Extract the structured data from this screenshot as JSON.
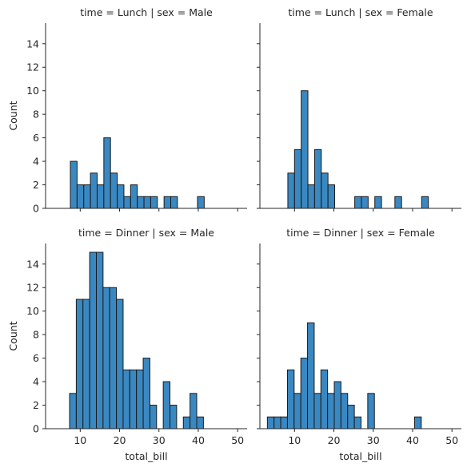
{
  "chart_data": {
    "type": "bar",
    "xlabel": "total_bill",
    "ylabel": "Count",
    "xlim": [
      1.2,
      52.4
    ],
    "ylim": [
      0,
      15.75
    ],
    "x_ticks": [
      10,
      20,
      30,
      40,
      50
    ],
    "y_ticks": [
      0,
      2,
      4,
      6,
      8,
      10,
      12,
      14
    ],
    "bar_color": "#3a88c2",
    "edge_color": "#1a1a1a",
    "panels": [
      {
        "title": "time = Lunch | sex = Male",
        "bin_edges": [
          7.5,
          9.2,
          10.9,
          12.6,
          14.3,
          16.0,
          17.7,
          19.4,
          21.1,
          22.8,
          24.5,
          26.2,
          27.9,
          29.6,
          31.3,
          33.0,
          34.7,
          36.4,
          38.1,
          39.8,
          41.5
        ],
        "counts": [
          4,
          2,
          2,
          3,
          2,
          6,
          3,
          2,
          1,
          2,
          1,
          1,
          1,
          0,
          1,
          1,
          0,
          0,
          0,
          1
        ]
      },
      {
        "title": "time = Lunch | sex = Female",
        "bin_edges": [
          8.3,
          10.0,
          11.7,
          13.4,
          15.1,
          16.8,
          18.5,
          20.2,
          21.9,
          23.6,
          25.3,
          27.0,
          28.7,
          30.4,
          32.1,
          33.8,
          35.5,
          37.2,
          38.9,
          40.6,
          42.3,
          44.0
        ],
        "counts": [
          3,
          5,
          10,
          2,
          5,
          3,
          2,
          0,
          0,
          0,
          1,
          1,
          0,
          1,
          0,
          0,
          1,
          0,
          0,
          0,
          1
        ]
      },
      {
        "title": "time = Dinner | sex = Male",
        "bin_edges": [
          7.3,
          9.0,
          10.7,
          12.4,
          14.1,
          15.8,
          17.5,
          19.2,
          20.9,
          22.6,
          24.3,
          26.0,
          27.7,
          29.4,
          31.1,
          32.8,
          34.5,
          36.2,
          37.9,
          39.6,
          41.3,
          43.0,
          44.7,
          46.4,
          48.1,
          49.8,
          51.5
        ],
        "counts": [
          3,
          11,
          11,
          15,
          15,
          12,
          12,
          11,
          5,
          5,
          5,
          6,
          2,
          0,
          4,
          2,
          0,
          1,
          3,
          1,
          0,
          0,
          0,
          0,
          0,
          0
        ]
      },
      {
        "title": "time = Dinner | sex = Female",
        "bin_edges": [
          3.1,
          4.8,
          6.5,
          8.2,
          9.9,
          11.6,
          13.3,
          15.0,
          16.7,
          18.4,
          20.1,
          21.8,
          23.5,
          25.2,
          26.9,
          28.6,
          30.3,
          32.0,
          33.7,
          35.4,
          37.1,
          38.8,
          40.5,
          42.2,
          43.9
        ],
        "counts": [
          1,
          1,
          1,
          5,
          3,
          6,
          9,
          3,
          5,
          3,
          4,
          3,
          2,
          1,
          0,
          3,
          0,
          0,
          0,
          0,
          0,
          0,
          1,
          0
        ]
      }
    ]
  }
}
